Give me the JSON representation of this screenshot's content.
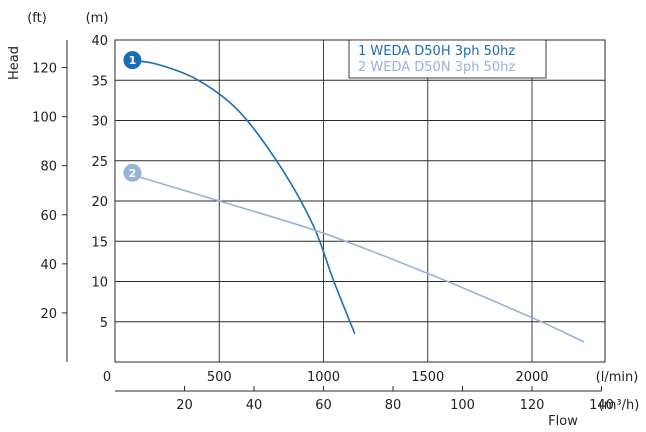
{
  "chart_data": {
    "type": "line",
    "title": "",
    "xlabel": "Flow",
    "ylabel": "Head",
    "units": {
      "x_primary": "(l/min)",
      "x_secondary": "(m³/h)",
      "y_primary": "(m)",
      "y_secondary": "(ft)"
    },
    "xlim": [
      0,
      2350
    ],
    "ylim": [
      0,
      40
    ],
    "x_primary_ticks": [
      "0",
      "500",
      "1000",
      "1500",
      "2000"
    ],
    "x_primary_tick_values": [
      0,
      500,
      1000,
      1500,
      2000
    ],
    "x_secondary_ticks": [
      "20",
      "40",
      "60",
      "80",
      "100",
      "120",
      "140"
    ],
    "x_secondary_tick_values": [
      20,
      40,
      60,
      80,
      100,
      120,
      140
    ],
    "y_primary_ticks": [
      "5",
      "10",
      "15",
      "20",
      "25",
      "30",
      "35",
      "40"
    ],
    "y_primary_tick_values": [
      5,
      10,
      15,
      20,
      25,
      30,
      35,
      40
    ],
    "y_secondary_ticks": [
      "20",
      "40",
      "60",
      "80",
      "100",
      "120"
    ],
    "y_secondary_tick_values": [
      20,
      40,
      60,
      80,
      100,
      120
    ],
    "grid": true,
    "legend_position": "top-right",
    "series": [
      {
        "name": "1 WEDA D50H 3ph 50hz",
        "marker_label": "1",
        "color": "#1a6eb4",
        "x": [
          50,
          200,
          400,
          600,
          800,
          950,
          1050,
          1150
        ],
        "y": [
          37.5,
          37,
          35,
          31,
          24,
          17,
          10,
          3.5
        ]
      },
      {
        "name": "2 WEDA D50N 3ph 50hz",
        "marker_label": "2",
        "color": "#95b4d8",
        "x": [
          50,
          500,
          1000,
          1500,
          2000,
          2250
        ],
        "y": [
          23.5,
          20,
          16,
          11,
          5.5,
          2.5
        ]
      }
    ]
  }
}
